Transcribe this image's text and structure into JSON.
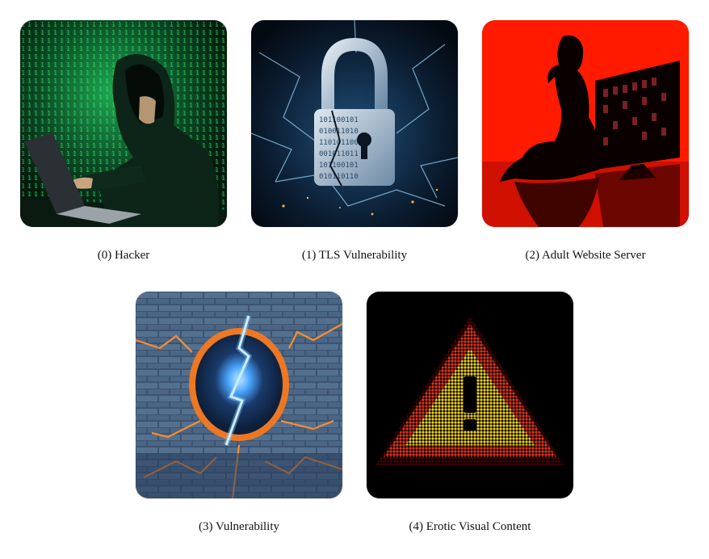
{
  "gallery": {
    "items": [
      {
        "caption": "(0) Hacker",
        "icon": "hacker-image"
      },
      {
        "caption": "(1) TLS Vulnerability",
        "icon": "broken-padlock-image"
      },
      {
        "caption": "(2) Adult Website Server",
        "icon": "silhouette-server-image"
      },
      {
        "caption": "(3) Vulnerability",
        "icon": "cracked-wall-lightning-image"
      },
      {
        "caption": "(4) Erotic Visual Content",
        "icon": "warning-triangle-image"
      }
    ]
  },
  "colors": {
    "matrix_green": "#22d36a",
    "lock_blue": "#5aa8e0",
    "server_red": "#ff1a00",
    "crack_orange": "#ff7a1a",
    "warning_yellow": "#f2d21c",
    "warning_red": "#e8341a"
  }
}
